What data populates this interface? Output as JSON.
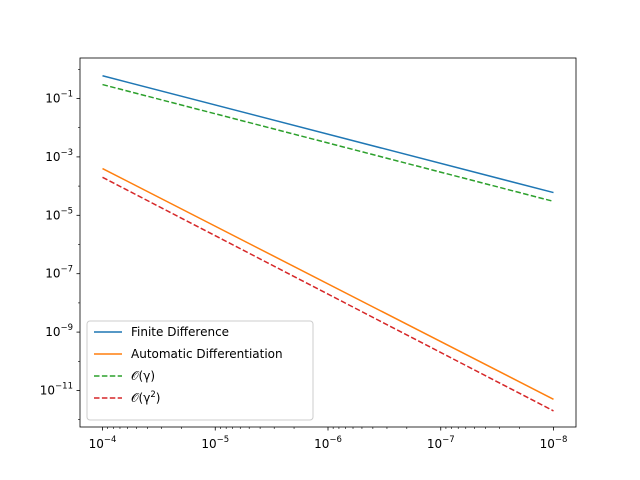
{
  "chart_data": {
    "type": "line",
    "title": "",
    "xlabel": "",
    "ylabel": "",
    "xscale": "log",
    "yscale": "log",
    "x_axis_inverted": true,
    "xlim": [
      0.0001,
      1e-08
    ],
    "ylim": [
      4e-12,
      1.5
    ],
    "grid": false,
    "legend_position": "lower left",
    "x_ticks": [
      {
        "value": 0.0001,
        "base": "10",
        "exp": "−4"
      },
      {
        "value": 1e-05,
        "base": "10",
        "exp": "−5"
      },
      {
        "value": 1e-06,
        "base": "10",
        "exp": "−6"
      },
      {
        "value": 1e-07,
        "base": "10",
        "exp": "−7"
      },
      {
        "value": 1e-08,
        "base": "10",
        "exp": "−8"
      }
    ],
    "y_ticks": [
      {
        "value": 0.1,
        "base": "10",
        "exp": "−1"
      },
      {
        "value": 0.001,
        "base": "10",
        "exp": "−3"
      },
      {
        "value": 1e-05,
        "base": "10",
        "exp": "−5"
      },
      {
        "value": 1e-07,
        "base": "10",
        "exp": "−7"
      },
      {
        "value": 1e-09,
        "base": "10",
        "exp": "−9"
      },
      {
        "value": 1e-11,
        "base": "10",
        "exp": "−11"
      }
    ],
    "series": [
      {
        "name": "Finite Difference",
        "label_parts": [
          "Finite Difference"
        ],
        "color": "#1f77b4",
        "dashed": false,
        "x": [
          0.0001,
          1e-08
        ],
        "y": [
          0.6,
          6e-05
        ]
      },
      {
        "name": "Automatic Differentiation",
        "label_parts": [
          "Automatic Differentiation"
        ],
        "color": "#ff7f0e",
        "dashed": false,
        "x": [
          0.0001,
          1e-08
        ],
        "y": [
          0.0004,
          5e-12
        ]
      },
      {
        "name": "𝒪(γ)",
        "label_parts": [
          "𝒪(γ)"
        ],
        "color": "#2ca02c",
        "dashed": true,
        "x": [
          0.0001,
          1e-08
        ],
        "y": [
          0.3,
          3e-05
        ]
      },
      {
        "name": "𝒪(γ²)",
        "label_parts": [
          "𝒪(γ",
          "2",
          ")"
        ],
        "color": "#d62728",
        "dashed": true,
        "x": [
          0.0001,
          1e-08
        ],
        "y": [
          0.0002,
          2e-12
        ]
      }
    ]
  }
}
